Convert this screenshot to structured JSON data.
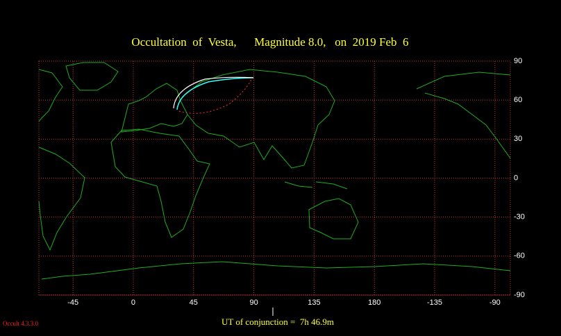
{
  "chart_data": {
    "type": "map",
    "title": "Occultation  of  Vesta,      Magnitude 8.0,   on  2019 Feb  6",
    "xlim": [
      -70.5,
      281.5
    ],
    "ylim": [
      -90,
      90
    ],
    "xticks": [
      -45,
      0,
      45,
      90,
      135,
      180,
      {
        "value": 225,
        "label": "-135"
      },
      {
        "value": 270,
        "label": "-90"
      }
    ],
    "yticks": [
      90,
      60,
      30,
      0,
      -30,
      -60,
      -90
    ],
    "conjunction": "UT of conjunction =  7h 46.9m",
    "version": "Occult 4.3.3.0",
    "grid": true
  }
}
